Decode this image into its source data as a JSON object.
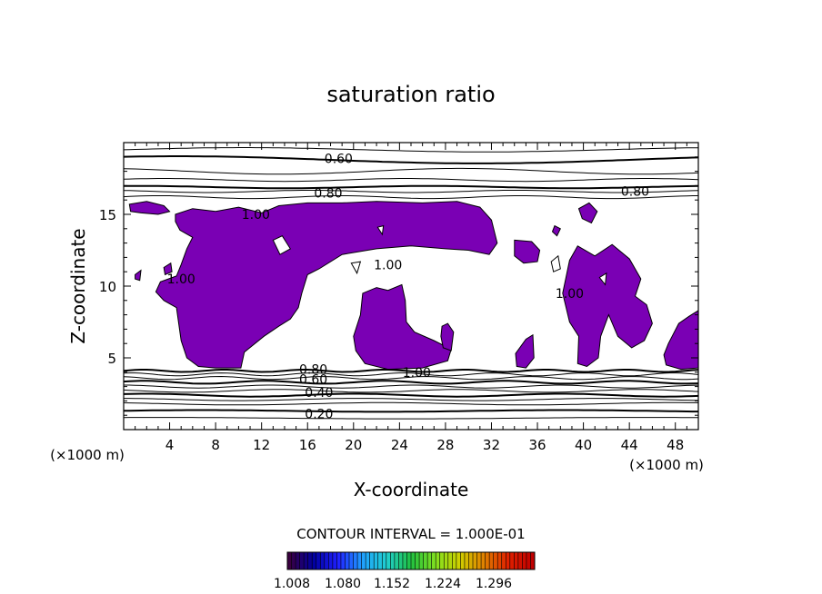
{
  "chart_data": {
    "type": "heatmap",
    "title": "saturation ratio",
    "xlabel": "X-coordinate",
    "ylabel": "Z-coordinate",
    "x_unit": "(×1000 m)",
    "z_unit": "(×1000 m)",
    "xlim": [
      0,
      50
    ],
    "ylim": [
      0,
      20
    ],
    "x_ticks": [
      4,
      8,
      12,
      16,
      20,
      24,
      28,
      32,
      36,
      40,
      44,
      48
    ],
    "y_ticks": [
      5,
      10,
      15
    ],
    "contour_interval_label": "CONTOUR INTERVAL = 1.000E-01",
    "contour_labels": [
      "0.60",
      "0.80",
      "0.80",
      "1.00",
      "1.00",
      "1.00",
      "1.00",
      "1.00",
      "0.80",
      "0.60",
      "0.40",
      "0.20"
    ],
    "colorbar_ticks": [
      "1.008",
      "1.080",
      "1.152",
      "1.224",
      "1.296"
    ],
    "fill_color": "#7a00b4",
    "colorbar_colors": [
      "#3a0040",
      "#0000a0",
      "#2020ff",
      "#20a0ff",
      "#20d0d0",
      "#20c040",
      "#80e020",
      "#d0d000",
      "#e08000",
      "#e02000",
      "#c00000"
    ],
    "supersaturated_regions_x_ranges": [
      [
        0.5,
        4
      ],
      [
        4.5,
        20
      ],
      [
        21.5,
        31
      ],
      [
        33.5,
        36
      ],
      [
        38,
        45
      ],
      [
        47.5,
        50
      ]
    ]
  }
}
